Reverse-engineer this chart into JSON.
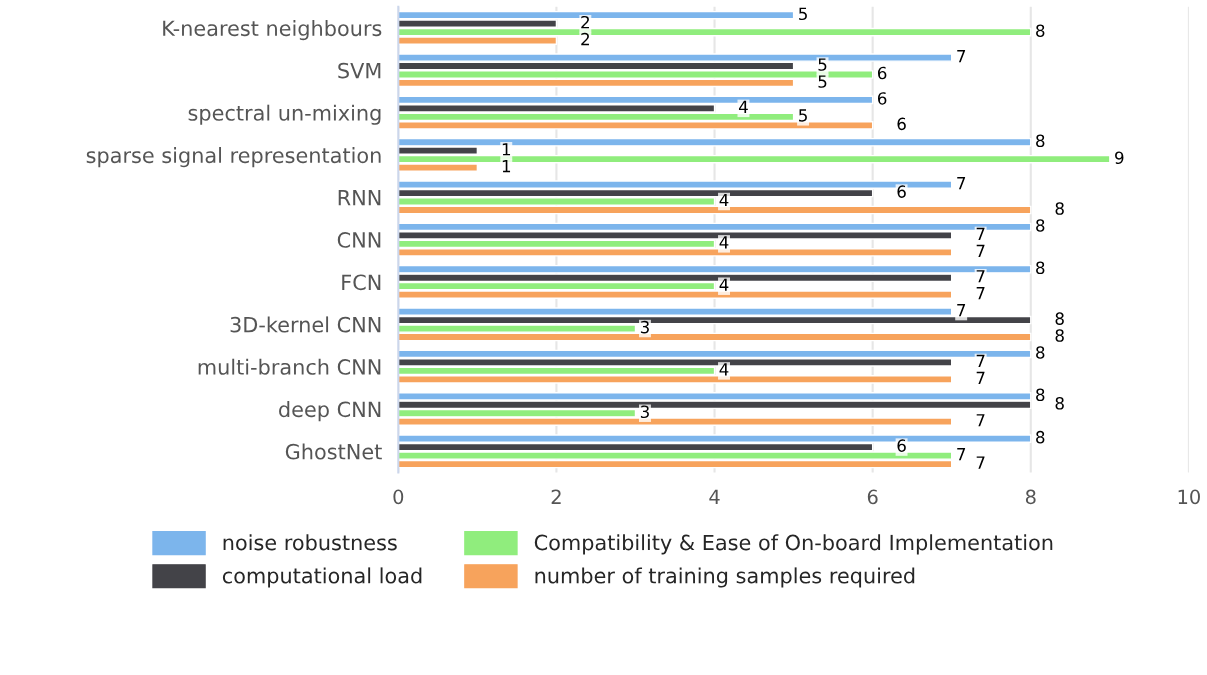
{
  "chart_data": {
    "type": "bar",
    "orientation": "horizontal",
    "categories": [
      "K-nearest neighbours",
      "SVM",
      "spectral un-mixing",
      "sparse signal representation",
      "RNN",
      "CNN",
      "FCN",
      "3D-kernel CNN",
      "multi-branch CNN",
      "deep CNN",
      "GhostNet"
    ],
    "series": [
      {
        "name": "noise robustness",
        "color": "#7cb5ec",
        "values": [
          5,
          7,
          6,
          8,
          7,
          8,
          8,
          7,
          8,
          8,
          8
        ]
      },
      {
        "name": "computational load",
        "color": "#434348",
        "values": [
          2,
          5,
          4,
          1,
          6,
          7,
          7,
          8,
          7,
          8,
          6
        ]
      },
      {
        "name": "Compatibility & Ease of On-board Implementation",
        "color": "#90ed7d",
        "values": [
          8,
          6,
          5,
          9,
          4,
          4,
          4,
          3,
          4,
          3,
          7
        ]
      },
      {
        "name": "number of training samples required",
        "color": "#f7a35c",
        "values": [
          2,
          5,
          6,
          1,
          8,
          7,
          7,
          8,
          7,
          7,
          7
        ]
      }
    ],
    "xlim": [
      0,
      10
    ],
    "xticks": [
      0,
      2,
      4,
      6,
      8,
      10
    ],
    "grid": "x",
    "legend": "bottom",
    "data_labels": true
  }
}
